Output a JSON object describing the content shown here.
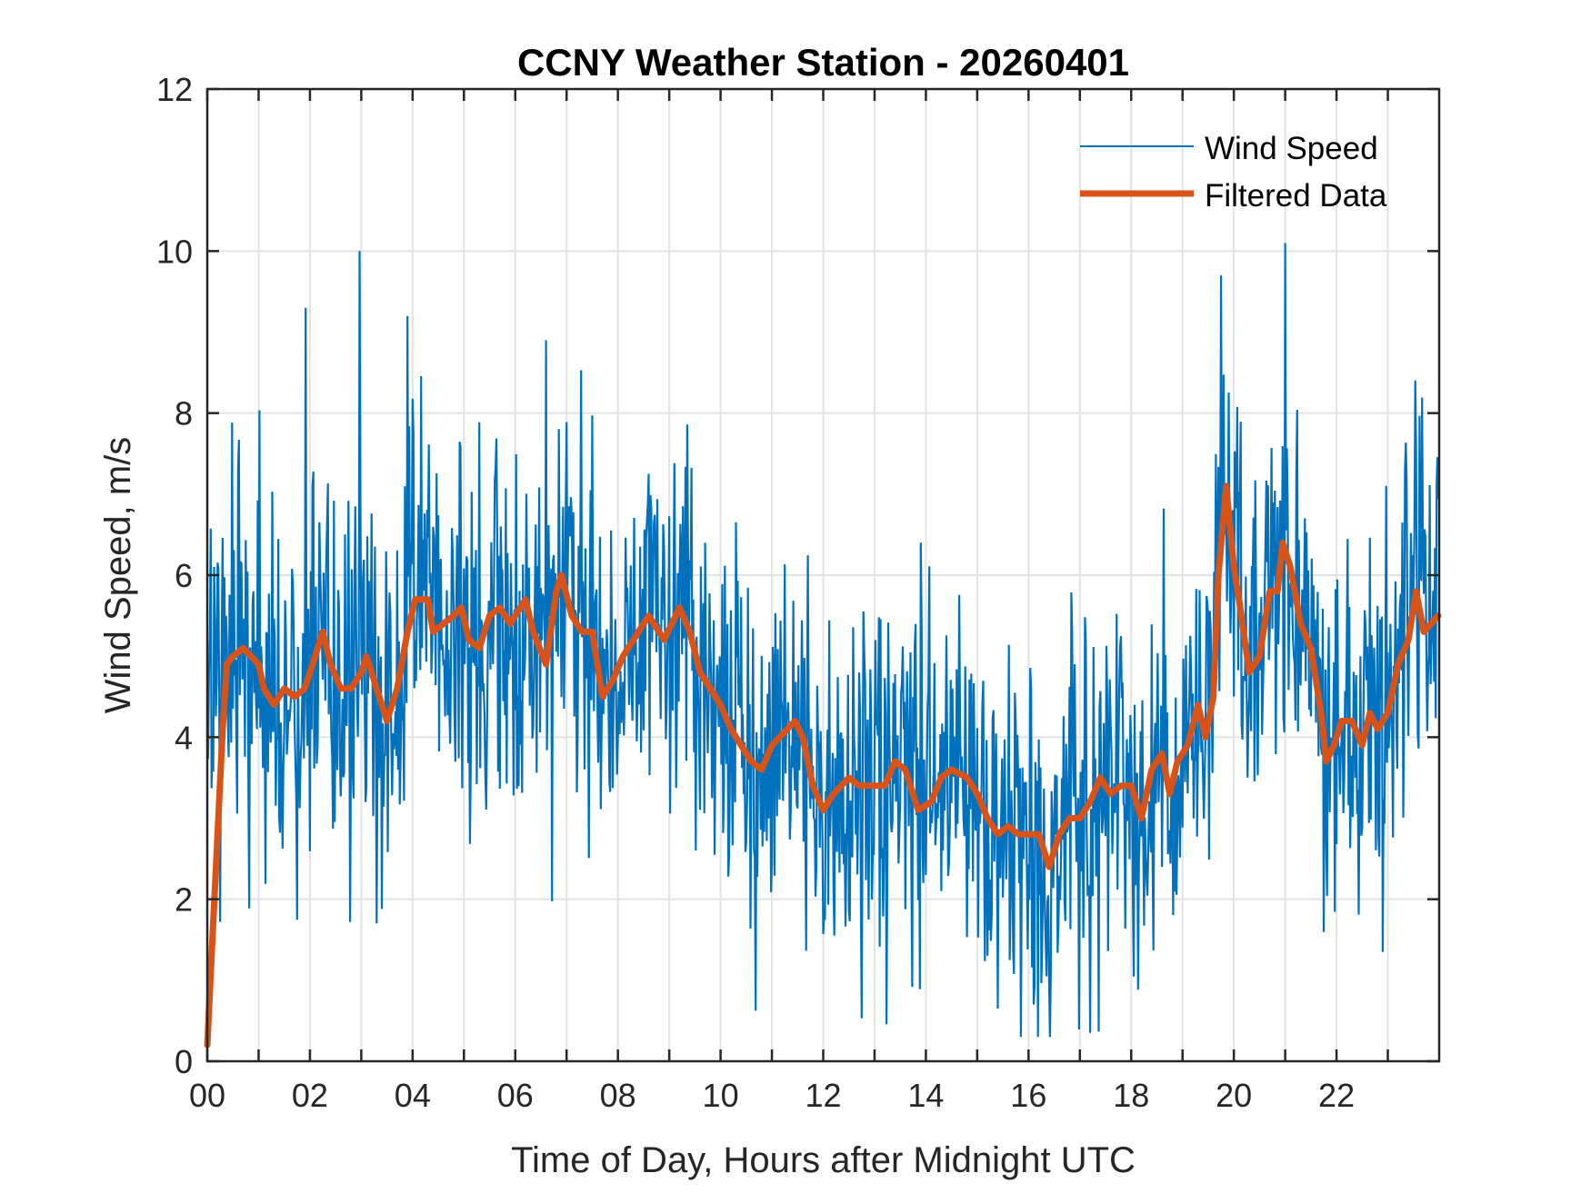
{
  "chart_data": {
    "type": "line",
    "title": "CCNY Weather Station - 20260401",
    "xlabel": "Time of Day, Hours after Midnight UTC",
    "ylabel": "Wind Speed, m/s",
    "xlim": [
      0,
      24
    ],
    "ylim": [
      0,
      12
    ],
    "grid": true,
    "legend_position": "top-right",
    "x_ticks": [
      0,
      2,
      4,
      6,
      8,
      10,
      12,
      14,
      16,
      18,
      20,
      22
    ],
    "x_tick_labels": [
      "00",
      "02",
      "04",
      "06",
      "08",
      "10",
      "12",
      "14",
      "16",
      "18",
      "20",
      "22"
    ],
    "x_minor_ticks": [
      1,
      3,
      5,
      7,
      9,
      11,
      13,
      15,
      17,
      19,
      21,
      23
    ],
    "y_ticks": [
      0,
      2,
      4,
      6,
      8,
      10,
      12
    ],
    "y_tick_labels": [
      "0",
      "2",
      "4",
      "6",
      "8",
      "10",
      "12"
    ],
    "series": [
      {
        "name": "Wind Speed",
        "color": "#0072BD",
        "style": "thin",
        "description": "Raw high-frequency wind speed samples, approx. 1-minute resolution; noisy band around the filtered trend",
        "sample_count": 1440,
        "noise_amplitude": 1.3,
        "notable_points": [
          {
            "x": 1.92,
            "y": 9.3
          },
          {
            "x": 2.97,
            "y": 10.0
          },
          {
            "x": 3.9,
            "y": 9.2
          },
          {
            "x": 6.6,
            "y": 8.9
          },
          {
            "x": 19.75,
            "y": 9.7
          },
          {
            "x": 21.0,
            "y": 10.1
          },
          {
            "x": 13.9,
            "y": 6.4
          },
          {
            "x": 15.4,
            "y": 0.65
          },
          {
            "x": 16.1,
            "y": 0.7
          },
          {
            "x": 17.2,
            "y": 0.35
          },
          {
            "x": 22.9,
            "y": 1.35
          },
          {
            "x": 3.3,
            "y": 1.7
          },
          {
            "x": 0.0,
            "y": 4.8
          }
        ]
      },
      {
        "name": "Filtered Data",
        "color": "#D95319",
        "style": "thick",
        "x": [
          0.0,
          0.1,
          0.2,
          0.3,
          0.38,
          0.5,
          0.7,
          0.85,
          1.0,
          1.1,
          1.3,
          1.5,
          1.7,
          1.9,
          2.1,
          2.25,
          2.4,
          2.6,
          2.8,
          3.0,
          3.1,
          3.3,
          3.5,
          3.7,
          3.9,
          4.05,
          4.3,
          4.4,
          4.6,
          4.8,
          4.95,
          5.1,
          5.3,
          5.5,
          5.7,
          5.9,
          6.2,
          6.35,
          6.6,
          6.8,
          6.9,
          7.1,
          7.3,
          7.5,
          7.7,
          7.9,
          8.1,
          8.4,
          8.6,
          8.9,
          9.2,
          9.4,
          9.6,
          9.8,
          10.0,
          10.2,
          10.4,
          10.6,
          10.8,
          11.0,
          11.3,
          11.45,
          11.6,
          11.8,
          12.0,
          12.2,
          12.5,
          12.7,
          13.0,
          13.2,
          13.4,
          13.6,
          13.85,
          14.1,
          14.3,
          14.5,
          14.8,
          15.0,
          15.2,
          15.4,
          15.6,
          15.8,
          16.0,
          16.2,
          16.4,
          16.6,
          16.8,
          17.0,
          17.2,
          17.4,
          17.6,
          17.8,
          18.0,
          18.2,
          18.4,
          18.6,
          18.75,
          18.9,
          19.1,
          19.3,
          19.45,
          19.6,
          19.7,
          19.85,
          20.0,
          20.1,
          20.3,
          20.5,
          20.7,
          20.85,
          20.95,
          21.1,
          21.3,
          21.5,
          21.7,
          21.8,
          21.95,
          22.1,
          22.3,
          22.5,
          22.65,
          22.8,
          23.0,
          23.2,
          23.4,
          23.55,
          23.7,
          23.98
        ],
        "y": [
          0.2,
          1.5,
          2.8,
          4.1,
          4.9,
          5.0,
          5.1,
          5.0,
          4.9,
          4.6,
          4.4,
          4.6,
          4.5,
          4.6,
          5.0,
          5.3,
          4.9,
          4.6,
          4.6,
          4.8,
          5.0,
          4.6,
          4.2,
          4.6,
          5.3,
          5.7,
          5.7,
          5.3,
          5.4,
          5.5,
          5.6,
          5.2,
          5.1,
          5.5,
          5.6,
          5.4,
          5.7,
          5.3,
          4.9,
          5.8,
          6.0,
          5.5,
          5.3,
          5.3,
          4.5,
          4.7,
          5.0,
          5.3,
          5.5,
          5.2,
          5.6,
          5.3,
          4.8,
          4.6,
          4.4,
          4.1,
          3.9,
          3.7,
          3.6,
          3.9,
          4.1,
          4.2,
          4.0,
          3.4,
          3.1,
          3.3,
          3.5,
          3.4,
          3.4,
          3.4,
          3.7,
          3.6,
          3.1,
          3.2,
          3.5,
          3.6,
          3.5,
          3.3,
          3.0,
          2.8,
          2.9,
          2.8,
          2.8,
          2.8,
          2.4,
          2.8,
          3.0,
          3.0,
          3.2,
          3.5,
          3.3,
          3.4,
          3.4,
          3.0,
          3.6,
          3.8,
          3.3,
          3.7,
          3.9,
          4.4,
          4.0,
          4.5,
          6.0,
          7.1,
          6.1,
          5.7,
          4.8,
          5.0,
          5.8,
          5.8,
          6.4,
          6.1,
          5.4,
          5.1,
          4.3,
          3.7,
          3.9,
          4.2,
          4.2,
          3.9,
          4.3,
          4.1,
          4.3,
          4.9,
          5.2,
          5.8,
          5.3,
          5.5
        ]
      }
    ]
  }
}
